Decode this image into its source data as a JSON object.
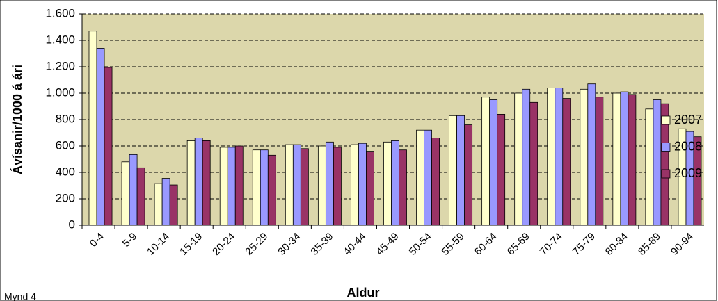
{
  "chart_data": {
    "type": "bar",
    "y_label": "Ávísanir/1000 á ári",
    "x_label": "Aldur",
    "caption": "Mynd 4",
    "categories": [
      "0-4",
      "5-9",
      "10-14",
      "15-19",
      "20-24",
      "25-29",
      "30-34",
      "35-39",
      "40-44",
      "45-49",
      "50-54",
      "55-59",
      "60-64",
      "65-69",
      "70-74",
      "75-79",
      "80-84",
      "85-89",
      "90-94"
    ],
    "series": [
      {
        "name": "2007",
        "color": "#ffffcc",
        "values": [
          1470,
          480,
          315,
          640,
          590,
          570,
          610,
          600,
          610,
          630,
          720,
          830,
          970,
          1000,
          1040,
          1030,
          1000,
          880,
          730
        ]
      },
      {
        "name": "2008",
        "color": "#9999ff",
        "values": [
          1340,
          535,
          355,
          660,
          590,
          570,
          610,
          630,
          620,
          640,
          720,
          830,
          950,
          1030,
          1040,
          1070,
          1010,
          950,
          710
        ]
      },
      {
        "name": "2009",
        "color": "#993366",
        "values": [
          1195,
          435,
          305,
          640,
          600,
          530,
          580,
          590,
          560,
          570,
          660,
          760,
          840,
          930,
          960,
          970,
          990,
          920,
          670
        ]
      }
    ],
    "ylim": [
      0,
      1600
    ],
    "yticks": [
      0,
      200,
      400,
      600,
      800,
      {
        "value": 1000,
        "label": "1.000"
      },
      {
        "value": 1200,
        "label": "1.200"
      },
      {
        "value": 1400,
        "label": "1.400"
      },
      {
        "value": 1600,
        "label": "1.600"
      }
    ],
    "grid": true,
    "legend": "right"
  }
}
